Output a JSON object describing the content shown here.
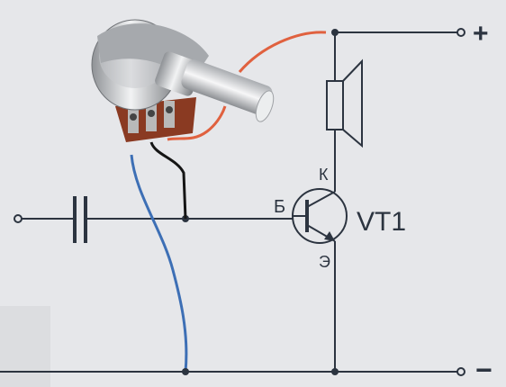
{
  "diagram": {
    "terminals": {
      "plus": "+",
      "minus": "−"
    },
    "transistor": {
      "name": "VT1",
      "pins": {
        "base": "Б",
        "collector": "К",
        "emitter": "Э"
      }
    },
    "components": [
      "capacitor",
      "speaker",
      "potentiometer"
    ],
    "colors": {
      "background": "#e6e7ea",
      "wire": "#2c3440",
      "red_wire": "#e0613f",
      "blue_wire": "#3d6fb5",
      "black_wire": "#151515",
      "pot_body": "#9b9ea3",
      "pot_board": "#8a3a22"
    }
  }
}
